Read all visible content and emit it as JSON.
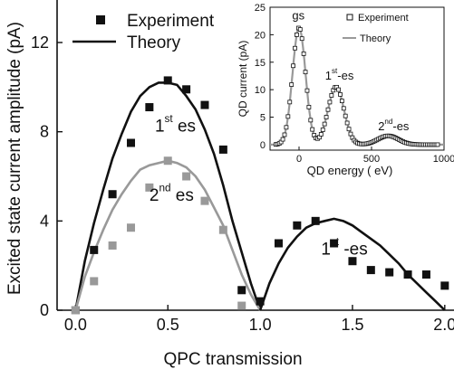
{
  "chart_data": [
    {
      "type": "scatter",
      "role": "main",
      "xlabel": "QPC transmission",
      "ylabel": "Excited state current amplitude (pA)",
      "xlim": [
        -0.1,
        2.05
      ],
      "ylim": [
        0,
        14
      ],
      "x_ticks": [
        0.0,
        0.5,
        1.0,
        1.5,
        2.0
      ],
      "x_tick_labels": [
        "0.0",
        "0.5",
        "1.0",
        "1.5",
        "2.0"
      ],
      "y_ticks": [
        0,
        4,
        8,
        12
      ],
      "y_tick_labels": [
        "0",
        "4",
        "8",
        "12"
      ],
      "grid": false,
      "legend": {
        "placement": "top-left",
        "entries": [
          {
            "label": "Experiment",
            "marker": "filled-square",
            "color": "#111111"
          },
          {
            "label": "Theory",
            "marker": "line",
            "color": "#111111"
          }
        ]
      },
      "series": [
        {
          "kind": "points",
          "color": "#111111",
          "x": [
            0.0,
            0.1,
            0.2,
            0.3,
            0.4,
            0.5,
            0.6,
            0.7,
            0.8,
            0.9,
            1.0,
            1.1,
            1.2,
            1.3,
            1.4,
            1.5,
            1.6,
            1.7,
            1.8,
            1.9,
            2.0
          ],
          "y": [
            0.0,
            2.7,
            5.2,
            7.5,
            9.1,
            10.3,
            9.9,
            9.2,
            7.2,
            0.9,
            0.4,
            3.0,
            3.8,
            4.0,
            3.0,
            2.2,
            1.8,
            1.7,
            1.6,
            1.6,
            1.1
          ]
        },
        {
          "kind": "points",
          "color": "#999999",
          "x": [
            0.0,
            0.1,
            0.2,
            0.3,
            0.4,
            0.5,
            0.6,
            0.7,
            0.8,
            0.9
          ],
          "y": [
            0.0,
            1.3,
            2.9,
            3.7,
            5.5,
            6.7,
            6.0,
            4.9,
            3.6,
            0.2
          ]
        },
        {
          "kind": "line",
          "color": "#111111",
          "x": [
            0.0,
            0.05,
            0.1,
            0.15,
            0.2,
            0.25,
            0.3,
            0.35,
            0.4,
            0.45,
            0.5,
            0.55,
            0.6,
            0.65,
            0.7,
            0.75,
            0.8,
            0.85,
            0.9,
            0.95,
            1.0
          ],
          "y": [
            0.0,
            2.2,
            3.9,
            5.4,
            6.8,
            7.9,
            8.9,
            9.6,
            10.0,
            10.2,
            10.2,
            10.1,
            9.6,
            9.0,
            8.1,
            7.0,
            5.6,
            4.0,
            2.6,
            1.2,
            0.0
          ]
        },
        {
          "kind": "line",
          "color": "#999999",
          "x": [
            0.0,
            0.05,
            0.1,
            0.15,
            0.2,
            0.25,
            0.3,
            0.35,
            0.4,
            0.45,
            0.5,
            0.55,
            0.6,
            0.65,
            0.7,
            0.75,
            0.8,
            0.85,
            0.9,
            0.95,
            1.0
          ],
          "y": [
            0.0,
            1.5,
            2.6,
            3.6,
            4.5,
            5.2,
            5.8,
            6.3,
            6.5,
            6.6,
            6.7,
            6.6,
            6.4,
            6.0,
            5.4,
            4.6,
            3.8,
            2.7,
            1.6,
            0.7,
            0.0
          ]
        },
        {
          "kind": "line",
          "color": "#111111",
          "x": [
            1.0,
            1.05,
            1.1,
            1.15,
            1.2,
            1.25,
            1.3,
            1.35,
            1.4,
            1.45,
            1.5,
            1.55,
            1.6,
            1.65,
            1.7,
            1.75,
            1.8,
            1.85,
            1.9,
            1.95,
            2.0
          ],
          "y": [
            0.0,
            1.2,
            2.1,
            2.8,
            3.3,
            3.7,
            3.9,
            4.0,
            4.1,
            4.0,
            3.8,
            3.5,
            3.2,
            2.9,
            2.5,
            2.1,
            1.6,
            1.2,
            0.8,
            0.4,
            0.0
          ]
        }
      ],
      "annotations": [
        {
          "base": "1",
          "sup": "st",
          "rest": " es",
          "x": 0.43,
          "y": 8.0
        },
        {
          "base": "2",
          "sup": "nd",
          "rest": " es",
          "x": 0.4,
          "y": 4.9
        },
        {
          "base": "1",
          "sup": "st",
          "rest": " -es",
          "x": 1.33,
          "y": 2.5
        }
      ]
    },
    {
      "type": "line",
      "role": "inset",
      "xlabel": "QD energy (  eV)",
      "ylabel": "QD current (pA)",
      "xlim": [
        -200,
        1000
      ],
      "ylim": [
        -1,
        25
      ],
      "x_ticks": [
        0,
        500,
        1000
      ],
      "x_tick_labels": [
        "0",
        "500",
        "1000"
      ],
      "y_ticks": [
        0,
        5,
        10,
        15,
        20,
        25
      ],
      "y_tick_labels": [
        "0",
        "5",
        "10",
        "15",
        "20",
        "25"
      ],
      "grid": false,
      "legend": {
        "placement": "top-right",
        "entries": [
          {
            "label": "Experiment",
            "marker": "open-square",
            "color": "#111111"
          },
          {
            "label": "Theory",
            "marker": "line",
            "color": "#999999"
          }
        ]
      },
      "peaks": [
        {
          "center": 0,
          "width": 45,
          "height": 21.3
        },
        {
          "center": 255,
          "width": 55,
          "height": 10.5
        },
        {
          "center": 615,
          "width": 70,
          "height": 1.6
        }
      ],
      "annotations": [
        {
          "base": "gs",
          "sup": "",
          "rest": "",
          "x": -10,
          "y": 22.8
        },
        {
          "base": "1",
          "sup": "st",
          "rest": "-es",
          "x": 255,
          "y": 11.8
        },
        {
          "base": "2",
          "sup": "nd",
          "rest": "-es",
          "x": 620,
          "y": 2.6
        }
      ]
    }
  ]
}
